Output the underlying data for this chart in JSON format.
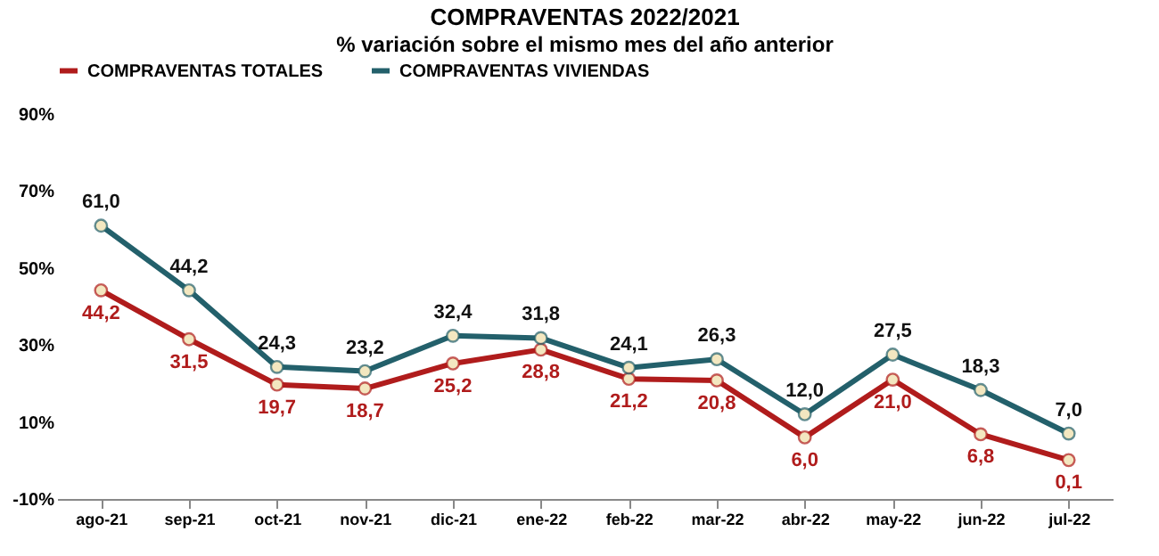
{
  "chart_data": {
    "type": "line",
    "title": "COMPRAVENTAS 2022/2021",
    "subtitle": "% variación sobre el mismo mes del año anterior",
    "categories": [
      "ago-21",
      "sep-21",
      "oct-21",
      "nov-21",
      "dic-21",
      "ene-22",
      "feb-22",
      "mar-22",
      "abr-22",
      "may-22",
      "jun-22",
      "jul-22"
    ],
    "series": [
      {
        "name": "COMPRAVENTAS TOTALES",
        "color": "#b01c1c",
        "values": [
          44.2,
          31.5,
          19.7,
          18.7,
          25.2,
          28.8,
          21.2,
          20.8,
          6.0,
          21.0,
          6.8,
          0.1
        ],
        "value_labels": [
          "44,2",
          "31,5",
          "19,7",
          "18,7",
          "25,2",
          "28,8",
          "21,2",
          "20,8",
          "6,0",
          "21,0",
          "6,8",
          "0,1"
        ]
      },
      {
        "name": "COMPRAVENTAS VIVIENDAS",
        "color": "#23606b",
        "values": [
          61.0,
          44.2,
          24.3,
          23.2,
          32.4,
          31.8,
          24.1,
          26.3,
          12.0,
          27.5,
          18.3,
          7.0
        ],
        "value_labels": [
          "61,0",
          "44,2",
          "24,3",
          "23,2",
          "32,4",
          "31,8",
          "24,1",
          "26,3",
          "12,0",
          "27,5",
          "18,3",
          "7,0"
        ]
      }
    ],
    "ylim": [
      -10,
      90
    ],
    "yticks": [
      {
        "value": -10,
        "label": "-10%"
      },
      {
        "value": 10,
        "label": "10%"
      },
      {
        "value": 30,
        "label": "30%"
      },
      {
        "value": 50,
        "label": "50%"
      },
      {
        "value": 70,
        "label": "70%"
      },
      {
        "value": 90,
        "label": "90%"
      }
    ],
    "legend": "top",
    "marker": "circle",
    "line_style": "solid",
    "grid": false
  }
}
